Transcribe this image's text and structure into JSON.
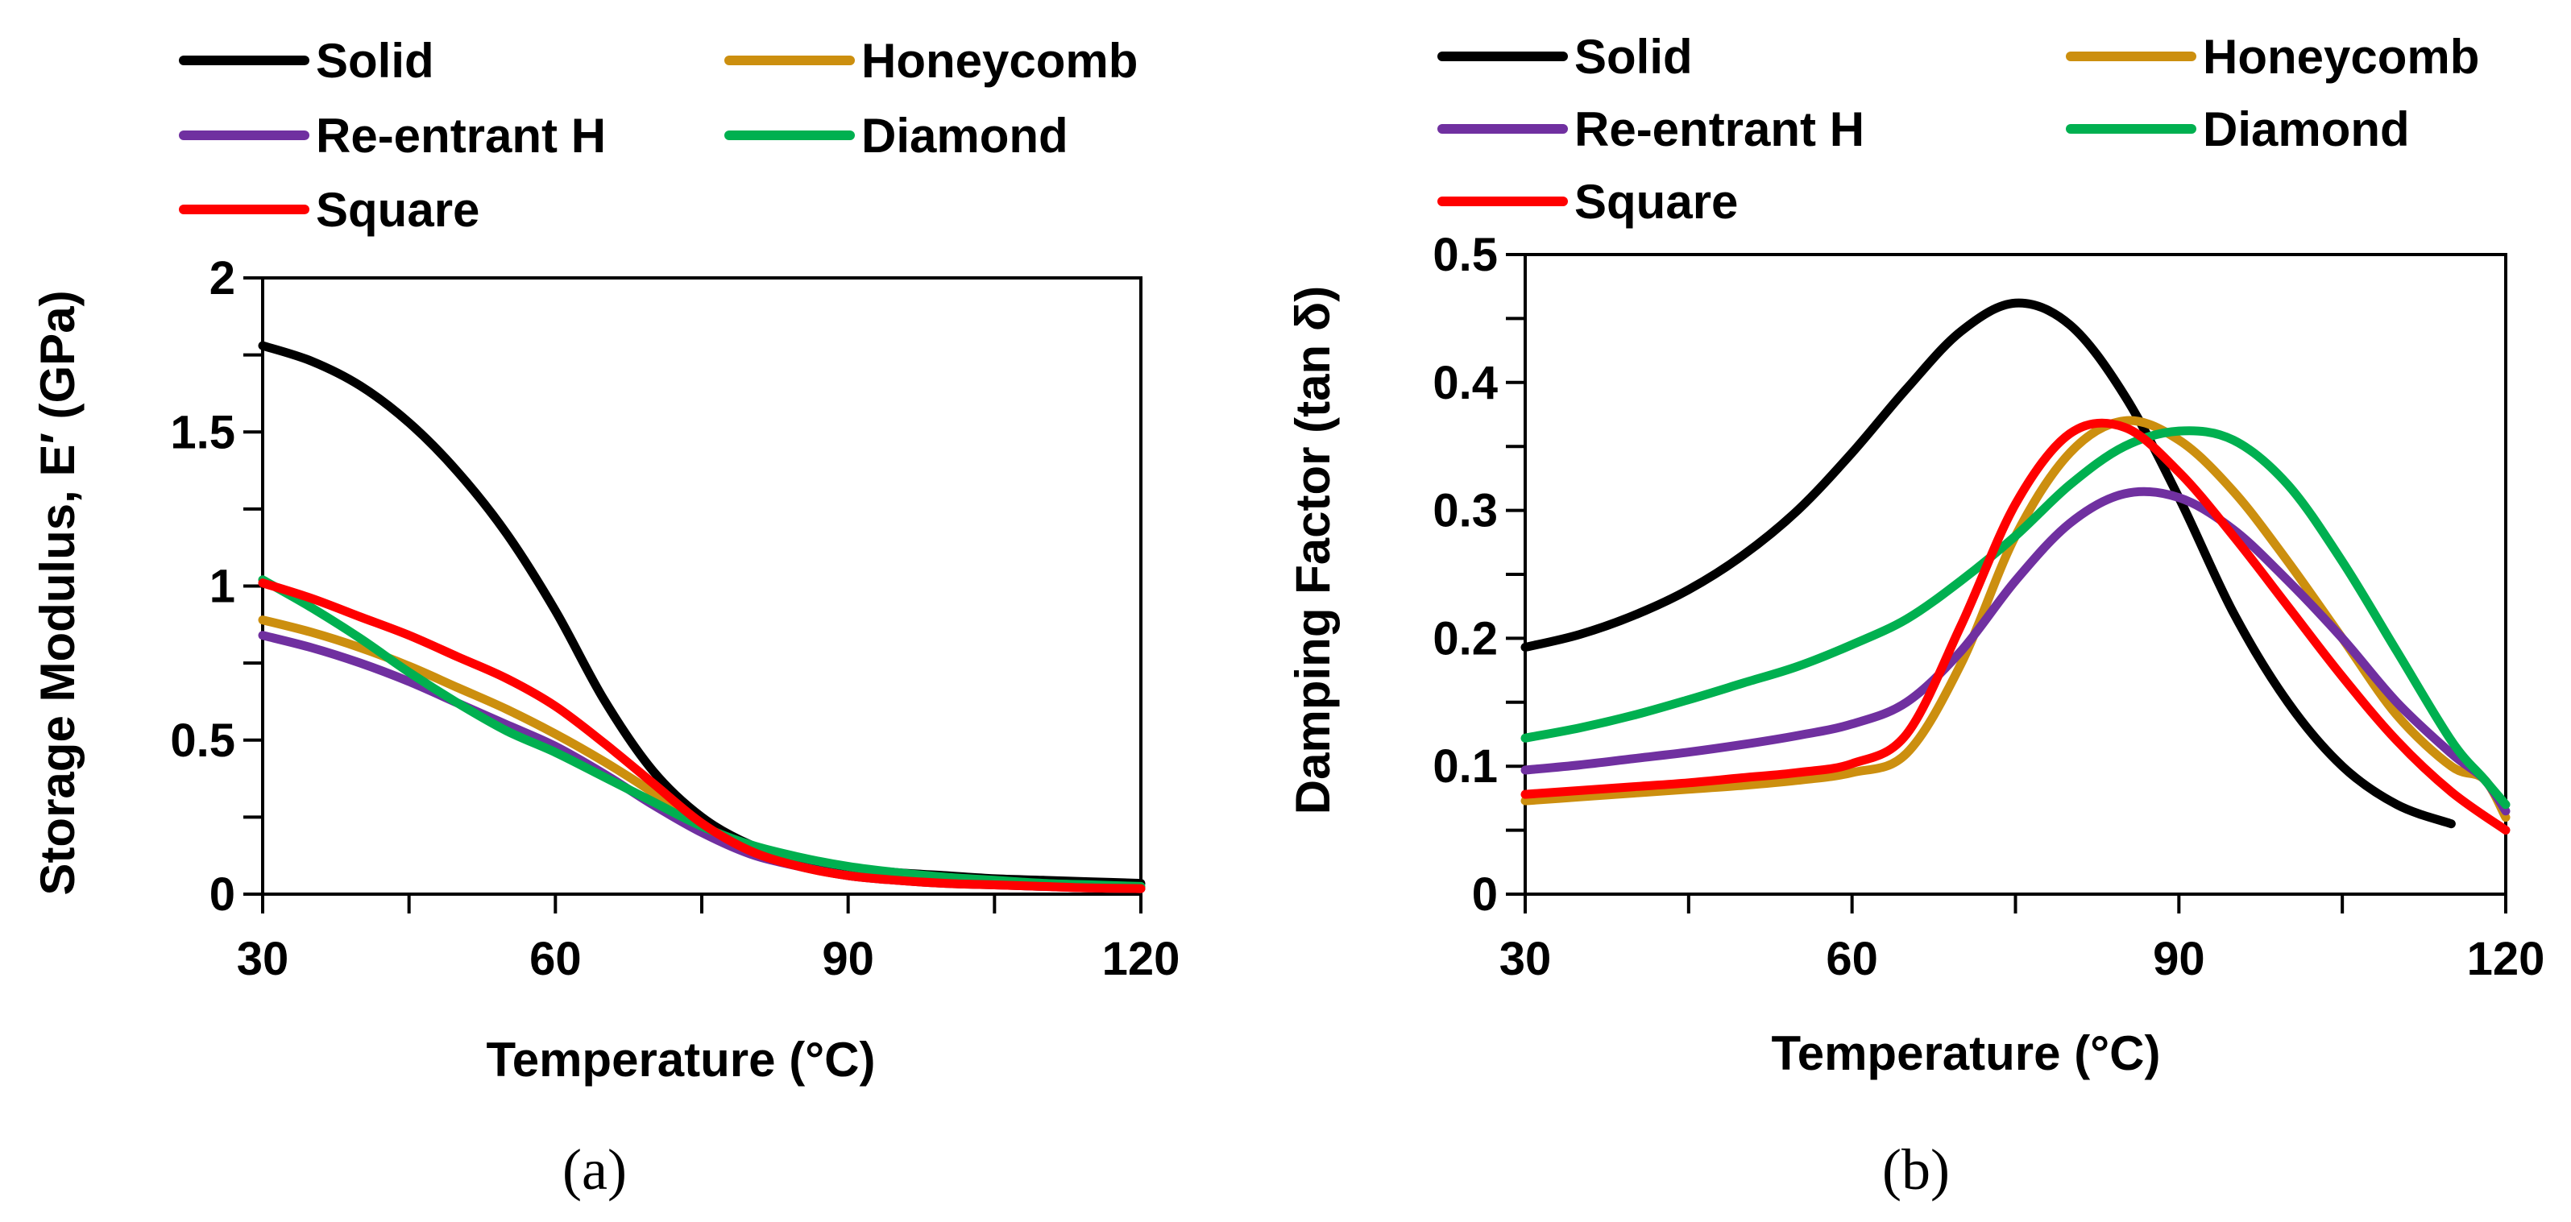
{
  "chart_data": [
    {
      "type": "line",
      "panel_label": "(a)",
      "xlabel": "Temperature (°C)",
      "ylabel": "Storage Modulus, E′ (GPa)",
      "xlim": [
        30,
        120
      ],
      "ylim": [
        0,
        2
      ],
      "xticks": [
        30,
        60,
        90,
        120
      ],
      "yticks": [
        0,
        0.5,
        1,
        1.5,
        2
      ],
      "yticklabels": [
        "0",
        "0.5",
        "1",
        "1.5",
        "2"
      ],
      "legend": {
        "placement": "top",
        "columns": 2
      },
      "series": [
        {
          "name": "Solid",
          "color": "#000000",
          "x": [
            30,
            35,
            40,
            45,
            50,
            55,
            60,
            65,
            70,
            75,
            80,
            85,
            90,
            95,
            100,
            105,
            110,
            115,
            120
          ],
          "y": [
            1.78,
            1.73,
            1.65,
            1.53,
            1.37,
            1.17,
            0.92,
            0.63,
            0.4,
            0.25,
            0.16,
            0.11,
            0.085,
            0.07,
            0.06,
            0.05,
            0.045,
            0.04,
            0.035
          ]
        },
        {
          "name": "Honeycomb",
          "color": "#cc8f0f",
          "x": [
            30,
            35,
            40,
            45,
            50,
            55,
            60,
            65,
            70,
            75,
            80,
            85,
            90,
            95,
            100,
            105,
            110,
            115,
            120
          ],
          "y": [
            0.89,
            0.85,
            0.8,
            0.74,
            0.67,
            0.6,
            0.52,
            0.43,
            0.33,
            0.22,
            0.14,
            0.09,
            0.06,
            0.045,
            0.035,
            0.03,
            0.025,
            0.02,
            0.018
          ]
        },
        {
          "name": "Re-entrant H",
          "color": "#7030a0",
          "x": [
            30,
            35,
            40,
            45,
            50,
            55,
            60,
            65,
            70,
            75,
            80,
            85,
            90,
            95,
            100,
            105,
            110,
            115,
            120
          ],
          "y": [
            0.84,
            0.8,
            0.75,
            0.69,
            0.62,
            0.55,
            0.48,
            0.39,
            0.29,
            0.2,
            0.13,
            0.09,
            0.06,
            0.045,
            0.035,
            0.03,
            0.025,
            0.02,
            0.018
          ]
        },
        {
          "name": "Diamond",
          "color": "#00b050",
          "x": [
            30,
            35,
            40,
            45,
            50,
            55,
            60,
            65,
            70,
            75,
            80,
            85,
            90,
            95,
            100,
            105,
            110,
            115,
            120
          ],
          "y": [
            1.02,
            0.93,
            0.83,
            0.72,
            0.62,
            0.53,
            0.46,
            0.38,
            0.3,
            0.22,
            0.16,
            0.12,
            0.09,
            0.07,
            0.055,
            0.045,
            0.035,
            0.03,
            0.025
          ]
        },
        {
          "name": "Square",
          "color": "#ff0000",
          "x": [
            30,
            35,
            40,
            45,
            50,
            55,
            60,
            65,
            70,
            75,
            80,
            85,
            90,
            95,
            100,
            105,
            110,
            115,
            120
          ],
          "y": [
            1.01,
            0.96,
            0.9,
            0.84,
            0.77,
            0.7,
            0.61,
            0.49,
            0.36,
            0.23,
            0.14,
            0.09,
            0.06,
            0.045,
            0.035,
            0.03,
            0.025,
            0.02,
            0.018
          ]
        }
      ]
    },
    {
      "type": "line",
      "panel_label": "(b)",
      "xlabel": "Temperature (°C)",
      "ylabel": "Damping Factor (tan δ)",
      "xlim": [
        30,
        120
      ],
      "ylim": [
        0,
        0.5
      ],
      "xticks": [
        30,
        60,
        90,
        120
      ],
      "yticks": [
        0,
        0.1,
        0.2,
        0.3,
        0.4,
        0.5
      ],
      "yticklabels": [
        "0",
        "0.1",
        "0.2",
        "0.3",
        "0.4",
        "0.5"
      ],
      "legend": {
        "placement": "top",
        "columns": 2
      },
      "series": [
        {
          "name": "Solid",
          "color": "#000000",
          "x": [
            30,
            35,
            40,
            45,
            50,
            55,
            60,
            65,
            70,
            75,
            80,
            85,
            90,
            95,
            100,
            105,
            110,
            115
          ],
          "y": [
            0.193,
            0.203,
            0.218,
            0.238,
            0.265,
            0.3,
            0.345,
            0.395,
            0.44,
            0.462,
            0.445,
            0.39,
            0.31,
            0.22,
            0.15,
            0.1,
            0.07,
            0.055
          ]
        },
        {
          "name": "Honeycomb",
          "color": "#cc8f0f",
          "x": [
            30,
            35,
            40,
            45,
            50,
            55,
            60,
            65,
            70,
            75,
            80,
            85,
            90,
            95,
            100,
            105,
            110,
            115,
            118,
            120
          ],
          "y": [
            0.073,
            0.076,
            0.079,
            0.082,
            0.085,
            0.089,
            0.095,
            0.11,
            0.18,
            0.28,
            0.345,
            0.37,
            0.355,
            0.315,
            0.26,
            0.2,
            0.14,
            0.1,
            0.09,
            0.06
          ]
        },
        {
          "name": "Re-entrant H",
          "color": "#7030a0",
          "x": [
            30,
            35,
            40,
            45,
            50,
            55,
            60,
            65,
            70,
            75,
            80,
            85,
            90,
            95,
            100,
            105,
            110,
            115,
            118,
            120
          ],
          "y": [
            0.097,
            0.101,
            0.106,
            0.111,
            0.117,
            0.124,
            0.133,
            0.15,
            0.19,
            0.245,
            0.29,
            0.313,
            0.31,
            0.285,
            0.245,
            0.2,
            0.15,
            0.11,
            0.09,
            0.065
          ]
        },
        {
          "name": "Diamond",
          "color": "#00b050",
          "x": [
            30,
            35,
            40,
            45,
            50,
            55,
            60,
            65,
            70,
            75,
            80,
            85,
            90,
            95,
            100,
            105,
            110,
            115,
            118,
            120
          ],
          "y": [
            0.122,
            0.13,
            0.14,
            0.152,
            0.165,
            0.178,
            0.195,
            0.215,
            0.245,
            0.28,
            0.32,
            0.35,
            0.362,
            0.355,
            0.32,
            0.26,
            0.19,
            0.12,
            0.09,
            0.07
          ]
        },
        {
          "name": "Square",
          "color": "#ff0000",
          "x": [
            30,
            35,
            40,
            45,
            50,
            55,
            60,
            65,
            70,
            75,
            80,
            85,
            90,
            95,
            100,
            105,
            110,
            115,
            120
          ],
          "y": [
            0.078,
            0.081,
            0.084,
            0.087,
            0.091,
            0.095,
            0.102,
            0.125,
            0.21,
            0.305,
            0.36,
            0.365,
            0.33,
            0.28,
            0.225,
            0.17,
            0.12,
            0.08,
            0.05
          ]
        }
      ]
    }
  ]
}
